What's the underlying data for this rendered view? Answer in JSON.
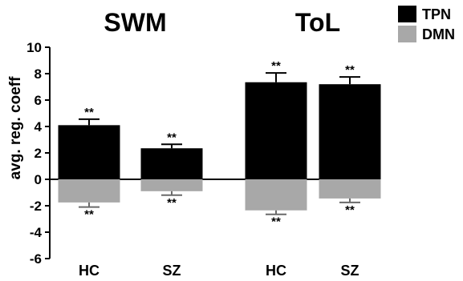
{
  "chart_data": {
    "type": "bar",
    "title": "",
    "xlabel": "",
    "ylabel": "avg. reg. coeff",
    "ylim": [
      -6,
      10
    ],
    "yticks": [
      -6,
      -4,
      -2,
      0,
      2,
      4,
      6,
      8,
      10
    ],
    "grid": false,
    "legend_position": "top-right",
    "groups": [
      {
        "title": "SWM",
        "categories": [
          "HC",
          "SZ"
        ]
      },
      {
        "title": "ToL",
        "categories": [
          "HC",
          "SZ"
        ]
      }
    ],
    "series": [
      {
        "name": "TPN",
        "color": "#000000",
        "values": [
          4.1,
          2.35,
          7.35,
          7.2
        ],
        "errors": [
          0.45,
          0.3,
          0.7,
          0.55
        ],
        "annotations": [
          "**",
          "**",
          "**",
          "**"
        ]
      },
      {
        "name": "DMN",
        "color": "#a8a8a8",
        "values": [
          -1.75,
          -0.9,
          -2.35,
          -1.45
        ],
        "errors": [
          0.35,
          0.3,
          0.3,
          0.3
        ],
        "annotations": [
          "**",
          "**",
          "**",
          "**"
        ]
      }
    ]
  }
}
